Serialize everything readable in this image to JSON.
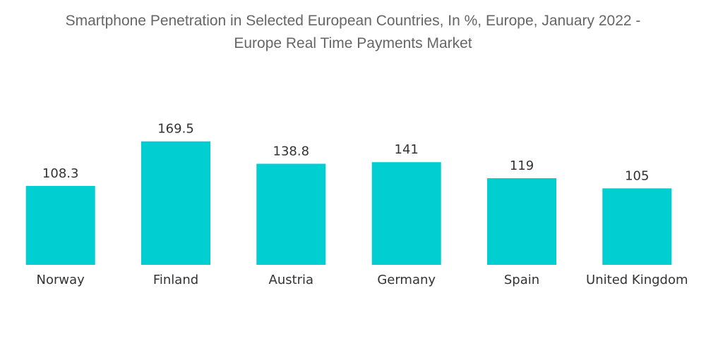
{
  "chart_data": {
    "type": "bar",
    "title_lines": [
      "Smartphone Penetration in Selected European Countries, In %, Europe, January 2022 -",
      "Europe Real Time Payments Market"
    ],
    "categories": [
      "Norway",
      "Finland",
      "Austria",
      "Germany",
      "Spain",
      "United Kingdom"
    ],
    "values": [
      108.3,
      169.5,
      138.8,
      141,
      119,
      105
    ],
    "value_labels": [
      "108.3",
      "169.5",
      "138.8",
      "141",
      "119",
      "105"
    ],
    "xlabel": "",
    "ylabel": "",
    "ylim": [
      0,
      175
    ],
    "bar_color": "#00CED1",
    "grid": false,
    "legend": "none"
  }
}
